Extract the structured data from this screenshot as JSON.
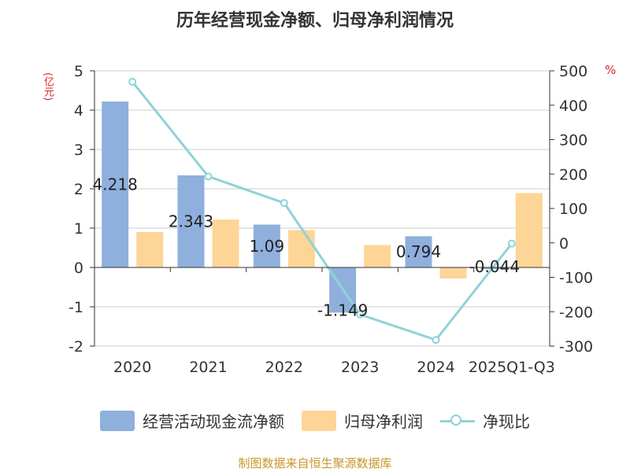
{
  "colors": {
    "bar1": "#8fb0dc",
    "bar2": "#fdd596",
    "line": "#8fd3d8",
    "unit": "#d9262c",
    "source": "#c9962b"
  },
  "chart_data": {
    "type": "bar",
    "title": "历年经营现金净额、归母净利润情况",
    "left_unit": "(亿元)",
    "right_unit": "%",
    "categories": [
      "2020",
      "2021",
      "2022",
      "2023",
      "2024",
      "2025Q1-Q3"
    ],
    "y_left": {
      "min": -2,
      "max": 5,
      "ticks": [
        5,
        4,
        3,
        2,
        1,
        0,
        -1,
        -2
      ]
    },
    "y_right": {
      "min": -300,
      "max": 500,
      "ticks": [
        500,
        400,
        300,
        200,
        100,
        0,
        -100,
        -200,
        -300
      ]
    },
    "grid": true,
    "legend_position": "bottom",
    "series": [
      {
        "name": "经营活动现金流净额",
        "axis": "left",
        "kind": "bar",
        "values": [
          4.218,
          2.343,
          1.09,
          -1.149,
          0.794,
          -0.044
        ],
        "labels": [
          "4.218",
          "2.343",
          "1.09",
          "-1.149",
          "0.794",
          "-0.044"
        ]
      },
      {
        "name": "归母净利润",
        "axis": "left",
        "kind": "bar",
        "values": [
          0.9,
          1.22,
          0.95,
          0.57,
          -0.28,
          1.89
        ]
      },
      {
        "name": "净现比",
        "axis": "right",
        "kind": "line",
        "values": [
          468,
          193,
          116,
          -208,
          -282,
          -2
        ]
      }
    ]
  },
  "source": "制图数据来自恒生聚源数据库"
}
